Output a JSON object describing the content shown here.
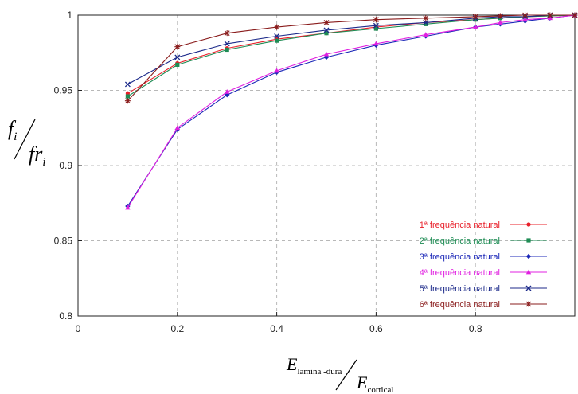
{
  "chart_data": {
    "type": "line",
    "title": "",
    "xlim": [
      0,
      1
    ],
    "ylim": [
      0.8,
      1.0
    ],
    "xticks": [
      0,
      0.2,
      0.4,
      0.6,
      0.8
    ],
    "xtick_labels": [
      "0",
      "0.2",
      "0.4",
      "0.6",
      "0.8"
    ],
    "yticks": [
      0.8,
      0.85,
      0.9,
      0.95,
      1.0
    ],
    "ytick_labels": [
      "0.8",
      "0.85",
      "0.9",
      "0.95",
      "1"
    ],
    "grid": true,
    "legend_position": "bottom-right",
    "xlabel": {
      "numerator_var": "E",
      "numerator_sub": "lamina -dura",
      "denominator_var": "E",
      "denominator_sub": "cortical"
    },
    "ylabel": {
      "numerator_var": "f",
      "numerator_sub": "i",
      "denominator_var": "fr",
      "denominator_sub": "i"
    },
    "x": [
      0.1,
      0.2,
      0.3,
      0.4,
      0.5,
      0.6,
      0.7,
      0.8,
      0.85,
      0.9,
      0.95,
      1.0
    ],
    "series": [
      {
        "name": "1ª frequência natural",
        "color": "#e8202a",
        "marker": "circle",
        "values": [
          0.948,
          0.968,
          0.978,
          0.984,
          0.988,
          0.992,
          0.995,
          0.997,
          0.998,
          0.999,
          0.9995,
          1.0
        ]
      },
      {
        "name": "2ª frequência natural",
        "color": "#1e8c54",
        "marker": "square",
        "values": [
          0.946,
          0.967,
          0.977,
          0.983,
          0.988,
          0.991,
          0.994,
          0.997,
          0.998,
          0.999,
          0.9995,
          1.0
        ]
      },
      {
        "name": "3ª frequência natural",
        "color": "#1c28b8",
        "marker": "diamond",
        "values": [
          0.873,
          0.924,
          0.947,
          0.962,
          0.972,
          0.98,
          0.986,
          0.992,
          0.994,
          0.996,
          0.998,
          1.0
        ]
      },
      {
        "name": "4ª frequência natural",
        "color": "#e020e0",
        "marker": "triangle",
        "values": [
          0.872,
          0.925,
          0.949,
          0.963,
          0.974,
          0.981,
          0.987,
          0.992,
          0.995,
          0.997,
          0.998,
          1.0
        ]
      },
      {
        "name": "5ª frequência natural",
        "color": "#1c2a8a",
        "marker": "x",
        "values": [
          0.954,
          0.972,
          0.981,
          0.986,
          0.99,
          0.993,
          0.995,
          0.998,
          0.999,
          0.999,
          1.0,
          1.0
        ]
      },
      {
        "name": "6ª frequência natural",
        "color": "#8a1c1c",
        "marker": "star",
        "values": [
          0.943,
          0.979,
          0.988,
          0.992,
          0.995,
          0.997,
          0.998,
          0.999,
          0.9995,
          1.0,
          1.0,
          1.0
        ]
      }
    ]
  }
}
